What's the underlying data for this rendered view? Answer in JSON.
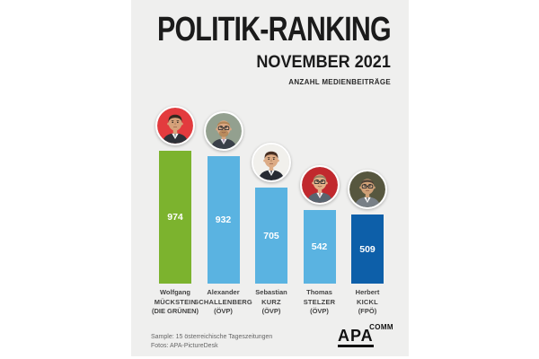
{
  "header": {
    "title": "POLITIK-RANKING",
    "subtitle": "NOVEMBER 2021",
    "caption": "ANZAHL MEDIENBEITRÄGE"
  },
  "chart_data": {
    "type": "bar",
    "title": "POLITIK-RANKING NOVEMBER 2021",
    "ylabel": "ANZAHL MEDIENBEITRÄGE",
    "categories": [
      "Wolfgang MÜCKSTEIN (DIE GRÜNEN)",
      "Alexander SCHALLENBERG (ÖVP)",
      "Sebastian KURZ (ÖVP)",
      "Thomas STELZER (ÖVP)",
      "Herbert KICKL (FPÖ)"
    ],
    "values": [
      974,
      932,
      705,
      542,
      509
    ],
    "ylim": [
      0,
      974
    ],
    "grid": false,
    "legend": "none",
    "value_labels_position": "centered-inside-bars",
    "items": [
      {
        "first": "Wolfgang",
        "last": "MÜCKSTEIN",
        "party": "(DIE GRÜNEN)",
        "value": "974",
        "bar_color": "#7cb32e",
        "avatar": {
          "name": "mueckstein-photo",
          "bg": "#e33b3e",
          "skin": "#d6a27b",
          "hair": "#34291f",
          "hairstyle": "full",
          "suit": "#2e3138",
          "shirt": "#ffffff",
          "tie": "#5a6472",
          "glasses": false,
          "beard": null,
          "smile": false
        }
      },
      {
        "first": "Alexander",
        "last": "SCHALLENBERG",
        "party": "(ÖVP)",
        "value": "932",
        "bar_color": "#5ab3e1",
        "avatar": {
          "name": "schallenberg-photo",
          "bg": "#93a08f",
          "skin": "#dba884",
          "hair": "#b08354",
          "hairstyle": "receding",
          "suit": "#3a4049",
          "shirt": "#e9e9ee",
          "tie": "#8c6a8f",
          "glasses": true,
          "beard": "#b08354",
          "smile": true
        }
      },
      {
        "first": "Sebastian",
        "last": "KURZ",
        "party": "(ÖVP)",
        "value": "705",
        "bar_color": "#5ab3e1",
        "avatar": {
          "name": "kurz-photo",
          "bg": "#f1f0ec",
          "skin": "#dcab85",
          "hair": "#472f23",
          "hairstyle": "full",
          "suit": "#272b33",
          "shirt": "#ffffff",
          "tie": "#23252e",
          "glasses": false,
          "beard": null,
          "smile": false
        }
      },
      {
        "first": "Thomas",
        "last": "STELZER",
        "party": "(ÖVP)",
        "value": "542",
        "bar_color": "#5ab3e1",
        "avatar": {
          "name": "stelzer-photo",
          "bg": "#c1292e",
          "skin": "#e2af88",
          "hair": "#8f7e62",
          "hairstyle": "receding",
          "suit": "#5a646f",
          "shirt": "#f0f0f2",
          "tie": "#b05a4e",
          "glasses": true,
          "beard": null,
          "smile": true
        }
      },
      {
        "first": "Herbert",
        "last": "KICKL",
        "party": "(FPÖ)",
        "value": "509",
        "bar_color": "#0d5fa9",
        "avatar": {
          "name": "kickl-photo",
          "bg": "#57573f",
          "skin": "#cfa077",
          "hair": "#443a31",
          "hairstyle": "receding",
          "suit": "#787f86",
          "shirt": "#ffffff",
          "tie": "#3c3f46",
          "glasses": true,
          "beard": null,
          "smile": false
        }
      }
    ]
  },
  "footer": {
    "source_line1": "Sample: 15 österreichische Tageszeitungen",
    "source_line2": "Fotos: APA-PictureDesk",
    "logo_main": "APA",
    "logo_suffix": "COMM"
  },
  "colors": {
    "poster_bg": "#efefee",
    "page_bg": "#ffffff",
    "green_bar": "#7cb32e",
    "light_blue_bar": "#5ab3e1",
    "dark_blue_bar": "#0d5fa9",
    "text_dark": "#1b1b1b"
  }
}
